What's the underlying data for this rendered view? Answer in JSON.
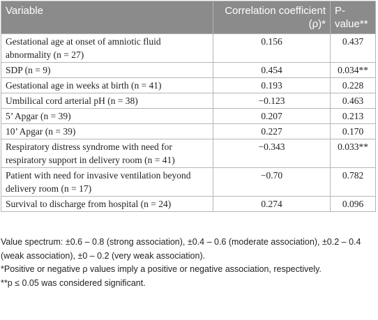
{
  "table": {
    "header": [
      "Variable",
      "Correlation coefficient (ρ)*",
      "P-value**"
    ],
    "rows": [
      [
        "Gestational age at onset of amniotic fluid abnormality (n = 27)",
        "0.156",
        "0.437"
      ],
      [
        "SDP (n = 9)",
        "0.454",
        "0.034**"
      ],
      [
        "Gestational age in weeks at birth (n = 41)",
        "0.193",
        "0.228"
      ],
      [
        "Umbilical cord arterial pH (n = 38)",
        "−0.123",
        "0.463"
      ],
      [
        "5’ Apgar (n = 39)",
        "0.207",
        "0.213"
      ],
      [
        "10’ Apgar (n = 39)",
        "0.227",
        "0.170"
      ],
      [
        "Respiratory distress syndrome with need for respiratory support in delivery room (n = 41)",
        "−0.343",
        "0.033**"
      ],
      [
        "Patient with need for invasive ventilation beyond delivery room (n = 17)",
        "−0.70",
        "0.782"
      ],
      [
        "Survival to discharge from hospital (n = 24)",
        "0.274",
        "0.096"
      ]
    ]
  },
  "footnotes": [
    "Value spectrum: ±0.6 – 0.8 (strong association), ±0.4 – 0.6 (moderate association), ±0.2 – 0.4 (weak association), ±0 – 0.2 (very weak association).",
    "*Positive or negative ρ values imply a positive or negative association, respectively.",
    "**p ≤ 0.05 was considered significant."
  ]
}
